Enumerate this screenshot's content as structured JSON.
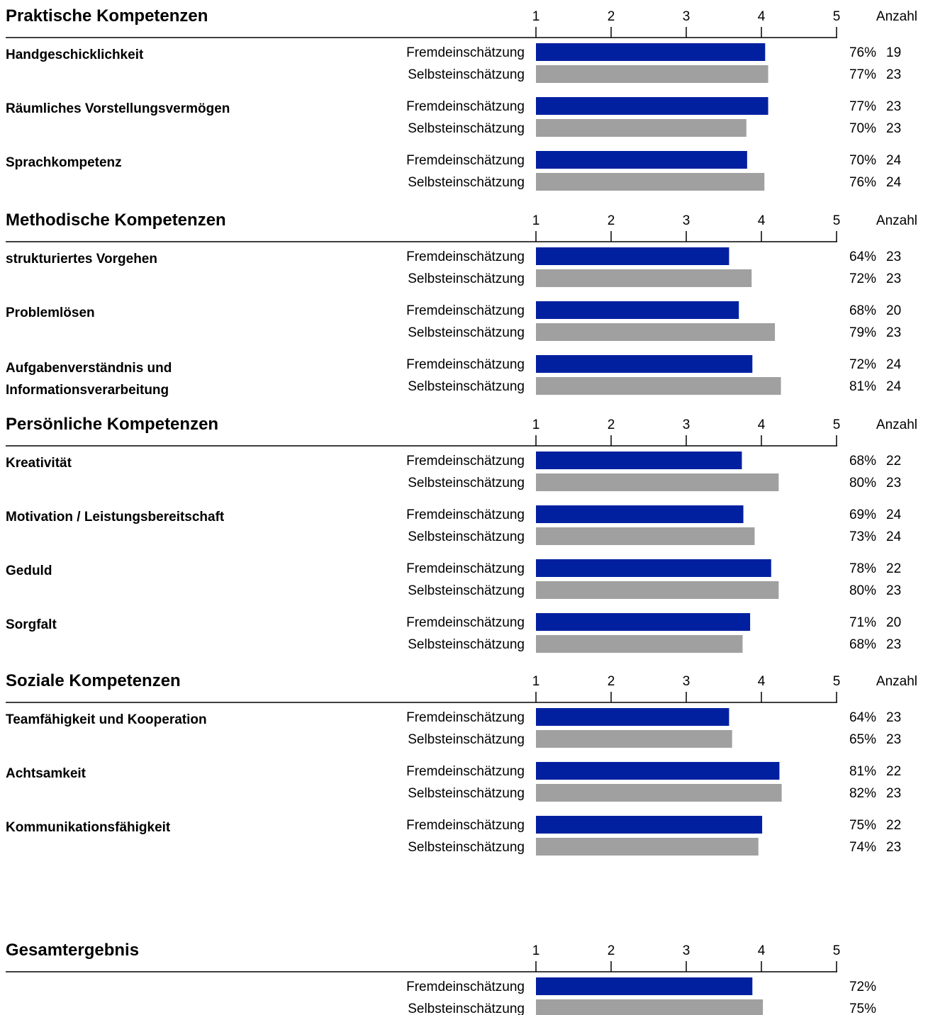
{
  "colors": {
    "fremd": "#0020a0",
    "selbst": "#a0a0a0",
    "axis": "#000000"
  },
  "labels": {
    "fremd": "Fremdeinschätzung",
    "selbst": "Selbsteinschätzung",
    "anzahl": "Anzahl"
  },
  "chart_data": {
    "type": "bar",
    "orientation": "horizontal",
    "xlim": [
      1,
      5
    ],
    "xticks": [
      "1",
      "2",
      "3",
      "4",
      "5"
    ],
    "series_names": [
      "Fremdeinschätzung",
      "Selbsteinschätzung"
    ],
    "legend": "none",
    "grid": false,
    "value_note": "bar values on 1–5 scale estimated from bar lengths",
    "sections": [
      {
        "title": "Praktische Kompetenzen",
        "show_anzahl": true,
        "criteria": [
          {
            "name": [
              "Handgeschicklichkeit"
            ],
            "fremd": {
              "value": 4.05,
              "pct": "76%",
              "n": "19"
            },
            "selbst": {
              "value": 4.09,
              "pct": "77%",
              "n": "23"
            }
          },
          {
            "name": [
              "Räumliches Vorstellungsvermögen"
            ],
            "fremd": {
              "value": 4.09,
              "pct": "77%",
              "n": "23"
            },
            "selbst": {
              "value": 3.8,
              "pct": "70%",
              "n": "23"
            }
          },
          {
            "name": [
              "Sprachkompetenz"
            ],
            "fremd": {
              "value": 3.81,
              "pct": "70%",
              "n": "24"
            },
            "selbst": {
              "value": 4.04,
              "pct": "76%",
              "n": "24"
            }
          }
        ]
      },
      {
        "title": "Methodische Kompetenzen",
        "show_anzahl": true,
        "criteria": [
          {
            "name": [
              "strukturiertes Vorgehen"
            ],
            "fremd": {
              "value": 3.57,
              "pct": "64%",
              "n": "23"
            },
            "selbst": {
              "value": 3.87,
              "pct": "72%",
              "n": "23"
            }
          },
          {
            "name": [
              "Problemlösen"
            ],
            "fremd": {
              "value": 3.7,
              "pct": "68%",
              "n": "20"
            },
            "selbst": {
              "value": 4.18,
              "pct": "79%",
              "n": "23"
            }
          },
          {
            "name": [
              "Aufgabenverständnis und",
              "Informationsverarbeitung"
            ],
            "fremd": {
              "value": 3.88,
              "pct": "72%",
              "n": "24"
            },
            "selbst": {
              "value": 4.26,
              "pct": "81%",
              "n": "24"
            }
          }
        ]
      },
      {
        "title": "Persönliche Kompetenzen",
        "show_anzahl": true,
        "criteria": [
          {
            "name": [
              "Kreativität"
            ],
            "fremd": {
              "value": 3.74,
              "pct": "68%",
              "n": "22"
            },
            "selbst": {
              "value": 4.23,
              "pct": "80%",
              "n": "23"
            }
          },
          {
            "name": [
              "Motivation / Leistungsbereitschaft"
            ],
            "fremd": {
              "value": 3.76,
              "pct": "69%",
              "n": "24"
            },
            "selbst": {
              "value": 3.91,
              "pct": "73%",
              "n": "24"
            }
          },
          {
            "name": [
              "Geduld"
            ],
            "fremd": {
              "value": 4.13,
              "pct": "78%",
              "n": "22"
            },
            "selbst": {
              "value": 4.23,
              "pct": "80%",
              "n": "23"
            }
          },
          {
            "name": [
              "Sorgfalt"
            ],
            "fremd": {
              "value": 3.85,
              "pct": "71%",
              "n": "20"
            },
            "selbst": {
              "value": 3.75,
              "pct": "68%",
              "n": "23"
            }
          }
        ]
      },
      {
        "title": "Soziale Kompetenzen",
        "show_anzahl": true,
        "criteria": [
          {
            "name": [
              "Teamfähigkeit und Kooperation"
            ],
            "fremd": {
              "value": 3.57,
              "pct": "64%",
              "n": "23"
            },
            "selbst": {
              "value": 3.61,
              "pct": "65%",
              "n": "23"
            }
          },
          {
            "name": [
              "Achtsamkeit"
            ],
            "fremd": {
              "value": 4.24,
              "pct": "81%",
              "n": "22"
            },
            "selbst": {
              "value": 4.27,
              "pct": "82%",
              "n": "23"
            }
          },
          {
            "name": [
              "Kommunikationsfähigkeit"
            ],
            "fremd": {
              "value": 4.01,
              "pct": "75%",
              "n": "22"
            },
            "selbst": {
              "value": 3.96,
              "pct": "74%",
              "n": "23"
            }
          }
        ]
      },
      {
        "title": "Gesamtergebnis",
        "show_anzahl": false,
        "criteria": [
          {
            "name": [],
            "fremd": {
              "value": 3.88,
              "pct": "72%",
              "n": ""
            },
            "selbst": {
              "value": 4.02,
              "pct": "75%",
              "n": ""
            }
          }
        ]
      }
    ]
  }
}
